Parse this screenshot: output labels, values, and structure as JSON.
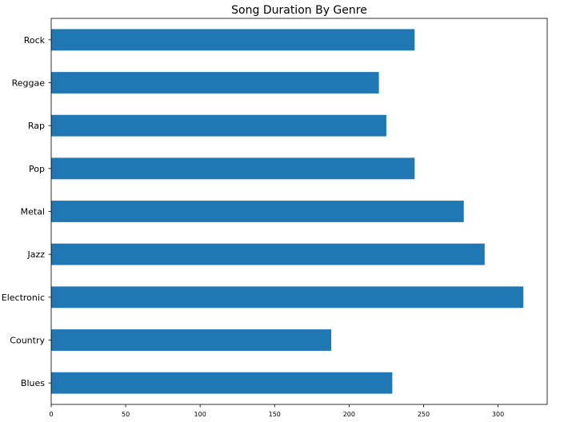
{
  "chart_data": {
    "type": "bar",
    "orientation": "horizontal",
    "title": "Song Duration By Genre",
    "xlabel": "",
    "ylabel": "",
    "categories": [
      "Blues",
      "Country",
      "Electronic",
      "Jazz",
      "Metal",
      "Pop",
      "Rap",
      "Reggae",
      "Rock"
    ],
    "values": [
      229,
      188,
      317,
      291,
      277,
      244,
      225,
      220,
      244
    ],
    "xlim": [
      0,
      333
    ],
    "xticks": [
      0,
      50,
      100,
      150,
      200,
      250,
      300
    ],
    "grid": false,
    "bar_color": "#1f77b4"
  }
}
